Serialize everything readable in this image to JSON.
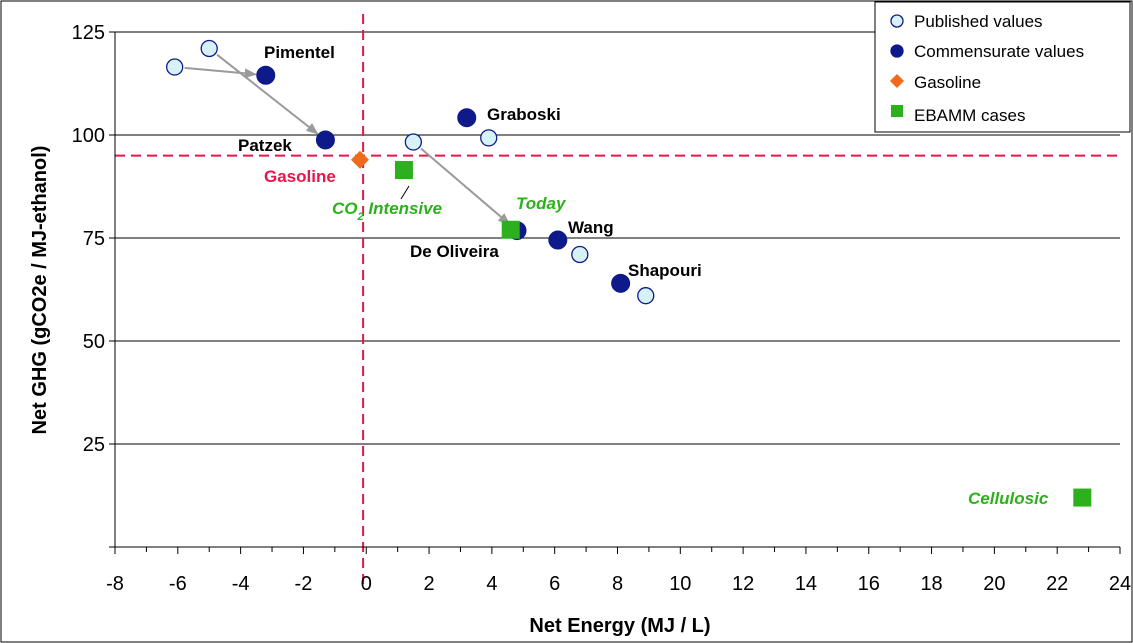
{
  "chart_data": {
    "type": "scatter",
    "title": "",
    "xlabel": "Net Energy (MJ / L)",
    "ylabel": "Net GHG (gCO2e / MJ-ethanol)",
    "xlim": [
      -8,
      24
    ],
    "ylim": [
      0,
      125
    ],
    "x_ticks": [
      -8,
      -6,
      -4,
      -2,
      0,
      2,
      4,
      6,
      8,
      10,
      12,
      14,
      16,
      18,
      20,
      22,
      24
    ],
    "y_ticks": [
      25,
      50,
      75,
      100,
      125
    ],
    "grid": "horizontal",
    "legend_position": "top-right",
    "reference_lines": {
      "x": -0.1,
      "y": 95,
      "style": "dashed",
      "color": "#e8174b"
    },
    "series": [
      {
        "name": "Published values",
        "marker": "circle-open",
        "color": "#d6f2f6",
        "points": [
          {
            "x": -6.1,
            "y": 116.5
          },
          {
            "x": -5.0,
            "y": 121.0
          },
          {
            "x": 1.5,
            "y": 98.3
          },
          {
            "x": 3.9,
            "y": 99.3
          },
          {
            "x": 6.8,
            "y": 71.0
          },
          {
            "x": 8.9,
            "y": 61.0
          }
        ]
      },
      {
        "name": "Commensurate values",
        "marker": "circle-filled",
        "color": "#0e1a8a",
        "points": [
          {
            "x": -3.2,
            "y": 114.5,
            "label": "Pimentel"
          },
          {
            "x": -1.3,
            "y": 98.8,
            "label": "Patzek"
          },
          {
            "x": 3.2,
            "y": 104.2,
            "label": "Graboski"
          },
          {
            "x": 4.8,
            "y": 76.8,
            "label": "De Oliveira"
          },
          {
            "x": 6.1,
            "y": 74.5,
            "label": "Wang"
          },
          {
            "x": 8.1,
            "y": 64.0,
            "label": "Shapouri"
          }
        ]
      },
      {
        "name": "Gasoline",
        "marker": "diamond",
        "color": "#f06a1b",
        "points": [
          {
            "x": -0.2,
            "y": 94.0,
            "label": "Gasoline"
          }
        ]
      },
      {
        "name": "EBAMM cases",
        "marker": "square",
        "color": "#2db01d",
        "points": [
          {
            "x": 1.2,
            "y": 91.5,
            "label": "CO2 Intensive"
          },
          {
            "x": 4.6,
            "y": 77.0,
            "label": "Today"
          },
          {
            "x": 22.8,
            "y": 12.0,
            "label": "Cellulosic"
          }
        ]
      }
    ],
    "arrows": [
      {
        "from": [
          -6.1,
          116.5
        ],
        "to": [
          -3.2,
          114.5
        ]
      },
      {
        "from": [
          -5.0,
          121.0
        ],
        "to": [
          -1.3,
          98.8
        ]
      },
      {
        "from": [
          1.5,
          98.3
        ],
        "to": [
          4.8,
          76.8
        ]
      }
    ]
  },
  "labels": {
    "pimentel": "Pimentel",
    "patzek": "Patzek",
    "graboski": "Graboski",
    "de_oliveira": "De Oliveira",
    "wang": "Wang",
    "shapouri": "Shapouri",
    "gasoline": "Gasoline",
    "co2_prefix": "CO",
    "co2_sub": "2",
    "co2_suffix": " Intensive",
    "today": "Today",
    "cellulosic": "Cellulosic"
  },
  "colors": {
    "reference_line": "#e8174b",
    "ebamm_label": "#2db01d",
    "gasoline_label": "#e8174b",
    "arrow": "#9a9a9a"
  }
}
